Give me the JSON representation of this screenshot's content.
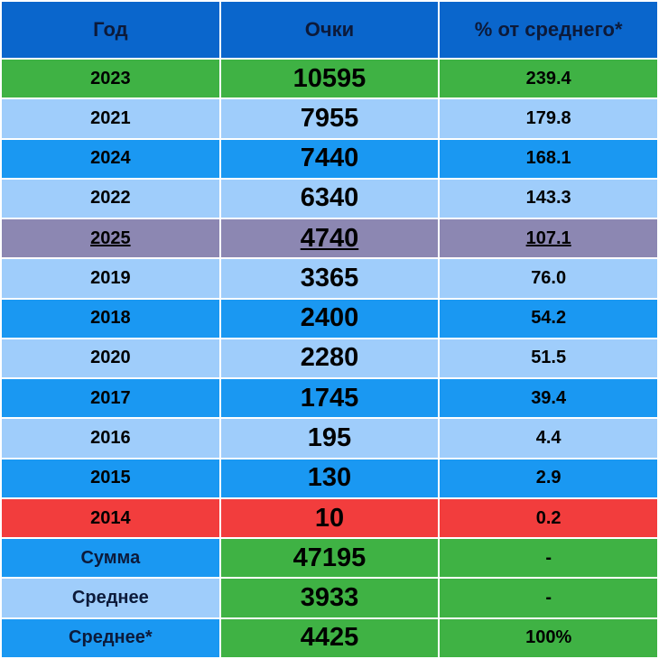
{
  "table": {
    "header": [
      "Год",
      "Очки",
      "% от среднего*"
    ],
    "rows": [
      [
        "2023",
        "10595",
        "239.4"
      ],
      [
        "2021",
        "7955",
        "179.8"
      ],
      [
        "2024",
        "7440",
        "168.1"
      ],
      [
        "2022",
        "6340",
        "143.3"
      ],
      [
        "2025",
        "4740",
        "107.1"
      ],
      [
        "2019",
        "3365",
        "76.0"
      ],
      [
        "2018",
        "2400",
        "54.2"
      ],
      [
        "2020",
        "2280",
        "51.5"
      ],
      [
        "2017",
        "1745",
        "39.4"
      ],
      [
        "2016",
        "195",
        "4.4"
      ],
      [
        "2015",
        "130",
        "2.9"
      ],
      [
        "2014",
        "10",
        "0.2"
      ],
      [
        "Сумма",
        "47195",
        "-"
      ],
      [
        "Среднее",
        "3933",
        "-"
      ],
      [
        "Среднее*",
        "4425",
        "100%"
      ]
    ]
  }
}
